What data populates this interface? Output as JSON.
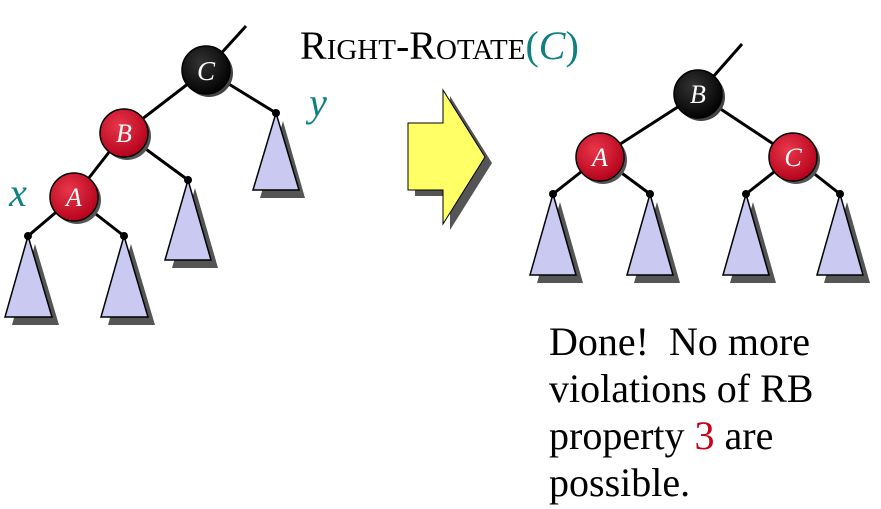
{
  "title": {
    "big_r": "R",
    "small_ight": "IGHT",
    "dash": "-",
    "big_r2": "R",
    "small_otate": "OTATE",
    "open_paren": "(",
    "arg": "C",
    "close_paren": ")"
  },
  "labels": {
    "x": "x",
    "y": "y"
  },
  "left_tree": {
    "nodes": {
      "C": "C",
      "B": "B",
      "A": "A"
    }
  },
  "right_tree": {
    "nodes": {
      "B": "B",
      "A": "A",
      "C": "C"
    }
  },
  "caption": {
    "line1": "Done!  No more",
    "line2": "violations of RB",
    "line3_a": "property ",
    "line3_num": "3",
    "line3_b": " are",
    "line4": "possible."
  },
  "colors": {
    "red_node": "#c8001a",
    "black_node": "#000000",
    "subtree_fill": "#c9c9f2",
    "arrow_fill": "#ffff66",
    "teal_label": "#0f7f7f",
    "caption_highlight": "#c8001a"
  }
}
